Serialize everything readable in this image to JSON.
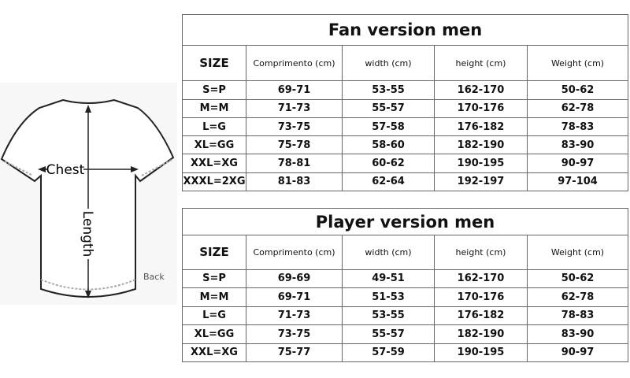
{
  "diagram": {
    "chest_label": "Chest",
    "length_label": "Length",
    "view_label": "Back"
  },
  "columns": [
    "SIZE",
    "Comprimento (cm)",
    "width (cm)",
    "height (cm)",
    "Weight (cm)"
  ],
  "fan": {
    "title": "Fan version men",
    "rows": [
      [
        "S=P",
        "69-71",
        "53-55",
        "162-170",
        "50-62"
      ],
      [
        "M=M",
        "71-73",
        "55-57",
        "170-176",
        "62-78"
      ],
      [
        "L=G",
        "73-75",
        "57-58",
        "176-182",
        "78-83"
      ],
      [
        "XL=GG",
        "75-78",
        "58-60",
        "182-190",
        "83-90"
      ],
      [
        "XXL=XG",
        "78-81",
        "60-62",
        "190-195",
        "90-97"
      ],
      [
        "XXXL=2XG",
        "81-83",
        "62-64",
        "192-197",
        "97-104"
      ]
    ]
  },
  "player": {
    "title": "Player version men",
    "rows": [
      [
        "S=P",
        "69-69",
        "49-51",
        "162-170",
        "50-62"
      ],
      [
        "M=M",
        "69-71",
        "51-53",
        "170-176",
        "62-78"
      ],
      [
        "L=G",
        "71-73",
        "53-55",
        "176-182",
        "78-83"
      ],
      [
        "XL=GG",
        "73-75",
        "55-57",
        "182-190",
        "83-90"
      ],
      [
        "XXL=XG",
        "75-77",
        "57-59",
        "190-195",
        "90-97"
      ]
    ]
  }
}
